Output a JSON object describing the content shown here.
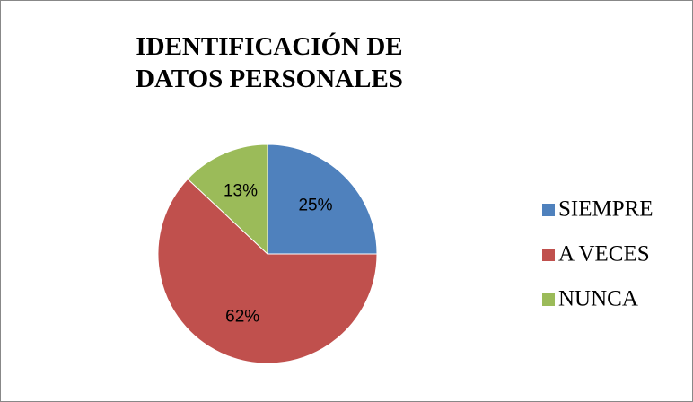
{
  "chart_data": {
    "type": "pie",
    "title": "IDENTIFICACIÓN DE DATOS PERSONALES",
    "categories": [
      "SIEMPRE",
      "A VECES",
      "NUNCA"
    ],
    "values": [
      25,
      62,
      13
    ],
    "value_labels": [
      "25%",
      "62%",
      "13%"
    ],
    "colors": [
      "#4f81bd",
      "#c0504d",
      "#9bbb59"
    ],
    "legend": "right"
  }
}
